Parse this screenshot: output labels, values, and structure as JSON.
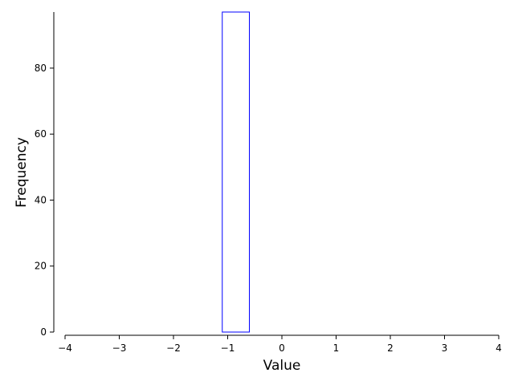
{
  "chart_data": {
    "type": "bar",
    "xlabel": "Value",
    "ylabel": "Frequency",
    "xlim": [
      -4,
      4
    ],
    "ylim": [
      0,
      97
    ],
    "x_ticks": [
      "−4",
      "−3",
      "−2",
      "−1",
      "0",
      "1",
      "2",
      "3",
      "4"
    ],
    "y_ticks": [
      "0",
      "20",
      "40",
      "60",
      "80"
    ],
    "bins": [
      {
        "start": -1.1,
        "end": -0.6,
        "count": 97
      },
      {
        "start": -0.6,
        "end": 1.95,
        "count": 0
      }
    ],
    "bar_edge_color": "#0000ff",
    "bar_fill": "none",
    "grid": false,
    "spines": [
      "left",
      "bottom"
    ]
  }
}
